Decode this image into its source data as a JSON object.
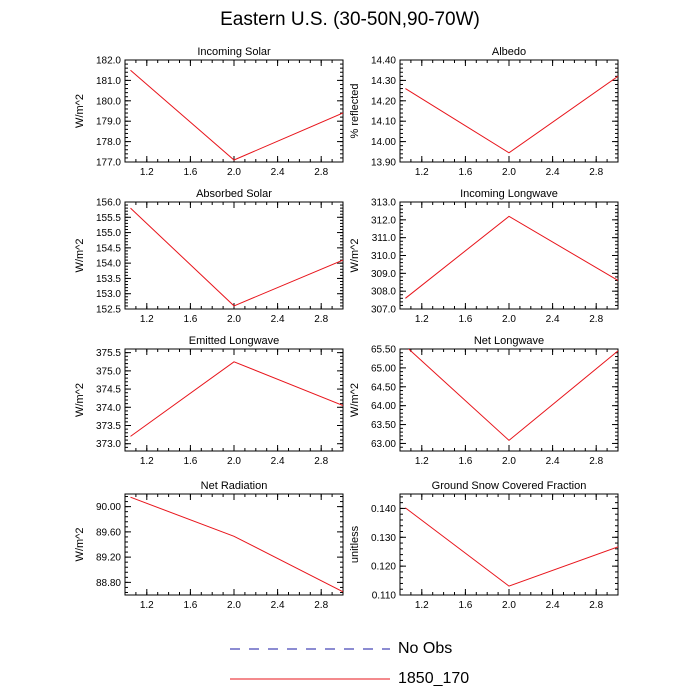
{
  "title": "Eastern U.S. (30-50N,90-70W)",
  "legend": [
    {
      "label": "No Obs",
      "color": "#1a1aa6",
      "style": "dashed"
    },
    {
      "label": "1850_170",
      "color": "#e8141b",
      "style": "solid"
    }
  ],
  "chart_data": [
    {
      "type": "line",
      "title": "Incoming Solar",
      "ylabel": "W/m^2",
      "xlim": [
        1.0,
        3.0
      ],
      "ylim": [
        177.0,
        182.0
      ],
      "xticks": [
        1.2,
        1.6,
        2.0,
        2.4,
        2.8
      ],
      "yticks": [
        177.0,
        178.0,
        179.0,
        180.0,
        181.0,
        182.0
      ],
      "ytick_labels": [
        "177.0",
        "178.0",
        "179.0",
        "180.0",
        "181.0",
        "182.0"
      ],
      "series": [
        {
          "x": [
            1.05,
            2.0,
            3.0
          ],
          "y": [
            181.5,
            177.1,
            179.4
          ]
        }
      ]
    },
    {
      "type": "line",
      "title": "Albedo",
      "ylabel": "% reflected",
      "xlim": [
        1.0,
        3.0
      ],
      "ylim": [
        13.9,
        14.4
      ],
      "xticks": [
        1.2,
        1.6,
        2.0,
        2.4,
        2.8
      ],
      "yticks": [
        13.9,
        14.0,
        14.1,
        14.2,
        14.3,
        14.4
      ],
      "ytick_labels": [
        "13.90",
        "14.00",
        "14.10",
        "14.20",
        "14.30",
        "14.40"
      ],
      "series": [
        {
          "x": [
            1.05,
            2.0,
            3.0
          ],
          "y": [
            14.26,
            13.945,
            14.32
          ]
        }
      ]
    },
    {
      "type": "line",
      "title": "Absorbed Solar",
      "ylabel": "W/m^2",
      "xlim": [
        1.0,
        3.0
      ],
      "ylim": [
        152.5,
        156.0
      ],
      "xticks": [
        1.2,
        1.6,
        2.0,
        2.4,
        2.8
      ],
      "yticks": [
        152.5,
        153.0,
        153.5,
        154.0,
        154.5,
        155.0,
        155.5,
        156.0
      ],
      "ytick_labels": [
        "152.5",
        "153.0",
        "153.5",
        "154.0",
        "154.5",
        "155.0",
        "155.5",
        "156.0"
      ],
      "series": [
        {
          "x": [
            1.05,
            2.0,
            3.0
          ],
          "y": [
            155.8,
            152.6,
            154.1
          ]
        }
      ]
    },
    {
      "type": "line",
      "title": "Incoming Longwave",
      "ylabel": "W/m^2",
      "xlim": [
        1.0,
        3.0
      ],
      "ylim": [
        307.0,
        313.0
      ],
      "xticks": [
        1.2,
        1.6,
        2.0,
        2.4,
        2.8
      ],
      "yticks": [
        307.0,
        308.0,
        309.0,
        310.0,
        311.0,
        312.0,
        313.0
      ],
      "ytick_labels": [
        "307.0",
        "308.0",
        "309.0",
        "310.0",
        "311.0",
        "312.0",
        "313.0"
      ],
      "series": [
        {
          "x": [
            1.05,
            2.0,
            3.0
          ],
          "y": [
            307.6,
            312.2,
            308.6
          ]
        }
      ]
    },
    {
      "type": "line",
      "title": "Emitted Longwave",
      "ylabel": "W/m^2",
      "xlim": [
        1.0,
        3.0
      ],
      "ylim": [
        372.8,
        375.6
      ],
      "xticks": [
        1.2,
        1.6,
        2.0,
        2.4,
        2.8
      ],
      "yticks": [
        373.0,
        373.5,
        374.0,
        374.5,
        375.0,
        375.5
      ],
      "ytick_labels": [
        "373.0",
        "373.5",
        "374.0",
        "374.5",
        "375.0",
        "375.5"
      ],
      "series": [
        {
          "x": [
            1.05,
            2.0,
            3.0
          ],
          "y": [
            373.2,
            375.25,
            374.05
          ]
        }
      ]
    },
    {
      "type": "line",
      "title": "Net Longwave",
      "ylabel": "W/m^2",
      "xlim": [
        1.0,
        3.0
      ],
      "ylim": [
        62.8,
        65.5
      ],
      "xticks": [
        1.2,
        1.6,
        2.0,
        2.4,
        2.8
      ],
      "yticks": [
        63.0,
        63.5,
        64.0,
        64.5,
        65.0,
        65.5
      ],
      "ytick_labels": [
        "63.00",
        "63.50",
        "64.00",
        "64.50",
        "65.00",
        "65.50"
      ],
      "series": [
        {
          "x": [
            1.05,
            2.0,
            3.0
          ],
          "y": [
            65.58,
            63.08,
            65.45
          ]
        }
      ]
    },
    {
      "type": "line",
      "title": "Net Radiation",
      "ylabel": "W/m^2",
      "xlim": [
        1.0,
        3.0
      ],
      "ylim": [
        88.6,
        90.2
      ],
      "xticks": [
        1.2,
        1.6,
        2.0,
        2.4,
        2.8
      ],
      "yticks": [
        88.8,
        89.2,
        89.6,
        90.0
      ],
      "ytick_labels": [
        "88.80",
        "89.20",
        "89.60",
        "90.00"
      ],
      "series": [
        {
          "x": [
            1.05,
            2.0,
            3.0
          ],
          "y": [
            90.15,
            89.53,
            88.65
          ]
        }
      ]
    },
    {
      "type": "line",
      "title": "Ground Snow Covered Fraction",
      "ylabel": "unitless",
      "xlim": [
        1.0,
        3.0
      ],
      "ylim": [
        0.11,
        0.145
      ],
      "xticks": [
        1.2,
        1.6,
        2.0,
        2.4,
        2.8
      ],
      "yticks": [
        0.11,
        0.12,
        0.13,
        0.14
      ],
      "ytick_labels": [
        "0.110",
        "0.120",
        "0.130",
        "0.140"
      ],
      "series": [
        {
          "x": [
            1.05,
            2.0,
            3.0
          ],
          "y": [
            0.1402,
            0.1131,
            0.1267
          ]
        }
      ]
    }
  ]
}
